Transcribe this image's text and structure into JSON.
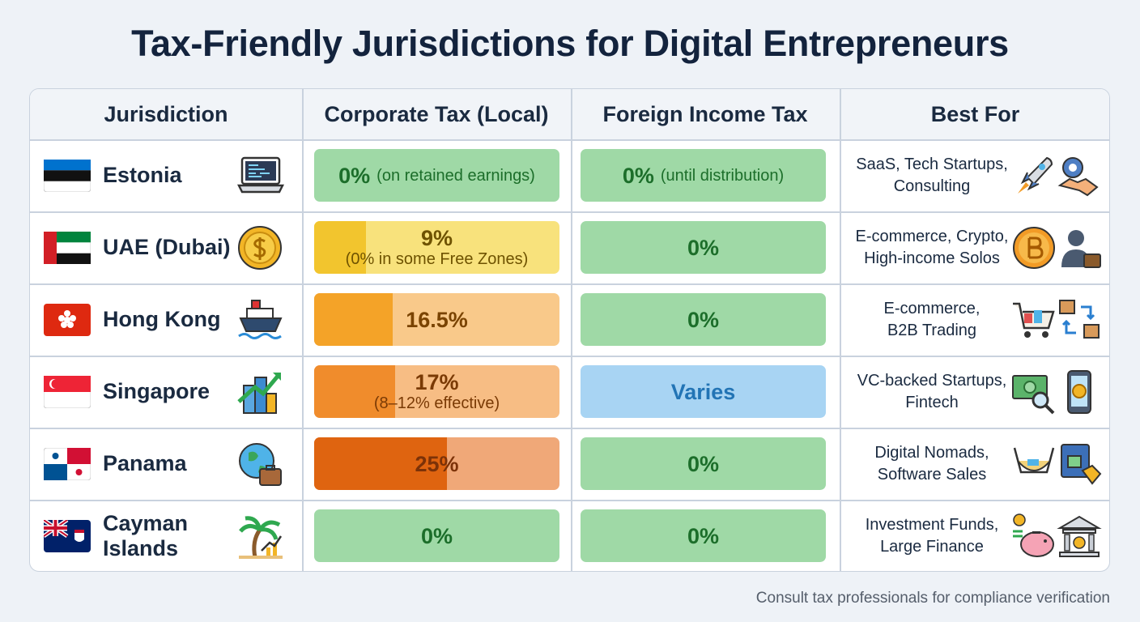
{
  "title": "Tax-Friendly Jurisdictions for Digital Entrepreneurs",
  "table": {
    "headers": [
      "Jurisdiction",
      "Corporate Tax (Local)",
      "Foreign Income Tax",
      "Best For"
    ],
    "rows": [
      {
        "jurisdiction": "Estonia",
        "corporate_tax": {
          "value": "0%",
          "note": "(on retained earnings)"
        },
        "foreign_income_tax": {
          "value": "0%",
          "note": "(until distribution)"
        },
        "best_for": [
          "SaaS, Tech Startups,",
          "Consulting"
        ]
      },
      {
        "jurisdiction": "UAE (Dubai)",
        "corporate_tax": {
          "value": "9%",
          "note": "(0% in some Free Zones)"
        },
        "foreign_income_tax": {
          "value": "0%"
        },
        "best_for": [
          "E-commerce, Crypto,",
          "High-income Solos"
        ]
      },
      {
        "jurisdiction": "Hong Kong",
        "corporate_tax": {
          "value": "16.5%"
        },
        "foreign_income_tax": {
          "value": "0%"
        },
        "best_for": [
          "E-commerce,",
          "B2B Trading"
        ]
      },
      {
        "jurisdiction": "Singapore",
        "corporate_tax": {
          "value": "17%",
          "note": "(8–12% effective)"
        },
        "foreign_income_tax": {
          "value": "Varies"
        },
        "best_for": [
          "VC-backed Startups,",
          "Fintech"
        ]
      },
      {
        "jurisdiction": "Panama",
        "corporate_tax": {
          "value": "25%"
        },
        "foreign_income_tax": {
          "value": "0%"
        },
        "best_for": [
          "Digital Nomads,",
          "Software Sales"
        ]
      },
      {
        "jurisdiction": "Cayman Islands",
        "corporate_tax": {
          "value": "0%"
        },
        "foreign_income_tax": {
          "value": "0%"
        },
        "best_for": [
          "Investment Funds,",
          "Large Finance"
        ]
      }
    ]
  },
  "footer": "Consult tax professionals for compliance verification"
}
